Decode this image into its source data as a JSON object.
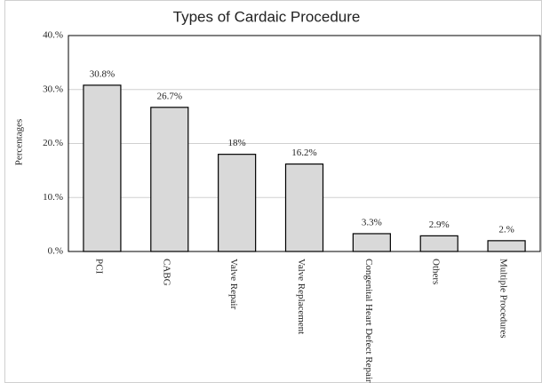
{
  "chart_data": {
    "type": "bar",
    "title": "Types of Cardaic Procedure",
    "y_label": "Percentages",
    "categories": [
      "PCI",
      "CABG",
      "Valve Repair",
      "Valve Replacement",
      "Congenital Heart Defect Repair",
      "Others",
      "Multiple Procedures"
    ],
    "values": [
      30.8,
      26.7,
      18,
      16.2,
      3.3,
      2.9,
      2
    ],
    "value_labels": [
      "30.8%",
      "26.7%",
      "18%",
      "16.2%",
      "3.3%",
      "2.9%",
      "2.%"
    ],
    "color": "#d9d9d9",
    "ylim": [
      0,
      40
    ],
    "yticks": [
      {
        "value": 0,
        "label": "0.%"
      },
      {
        "value": 10,
        "label": "10.%"
      },
      {
        "value": 20,
        "label": "20.%"
      },
      {
        "value": 30,
        "label": "30.%"
      },
      {
        "value": 40,
        "label": "40.%"
      }
    ],
    "grid": true
  }
}
